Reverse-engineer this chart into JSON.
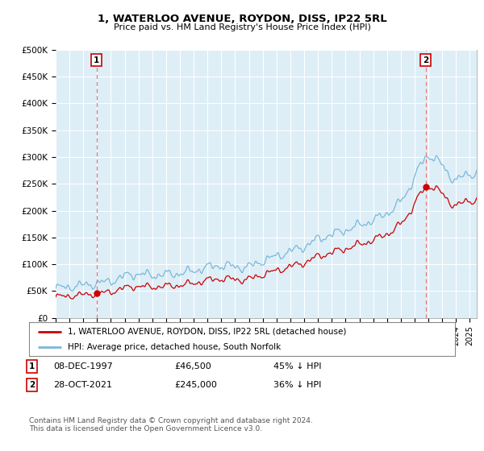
{
  "title": "1, WATERLOO AVENUE, ROYDON, DISS, IP22 5RL",
  "subtitle": "Price paid vs. HM Land Registry's House Price Index (HPI)",
  "ylabel_values": [
    "£0",
    "£50K",
    "£100K",
    "£150K",
    "£200K",
    "£250K",
    "£300K",
    "£350K",
    "£400K",
    "£450K",
    "£500K"
  ],
  "ylim": [
    0,
    500000
  ],
  "hpi_color": "#7ab8d9",
  "hpi_fill_color": "#ddeef7",
  "price_color": "#cc0000",
  "marker_color": "#cc0000",
  "dashed_color": "#e87a7a",
  "sale1_date": "08-DEC-1997",
  "sale1_price": 46500,
  "sale1_label": "45% ↓ HPI",
  "sale2_date": "28-OCT-2021",
  "sale2_price": 245000,
  "sale2_label": "36% ↓ HPI",
  "legend_line1": "1, WATERLOO AVENUE, ROYDON, DISS, IP22 5RL (detached house)",
  "legend_line2": "HPI: Average price, detached house, South Norfolk",
  "footnote": "Contains HM Land Registry data © Crown copyright and database right 2024.\nThis data is licensed under the Open Government Licence v3.0.",
  "xlim_start": 1995.0,
  "xlim_end": 2025.5,
  "bg_color": "#ddeef7"
}
